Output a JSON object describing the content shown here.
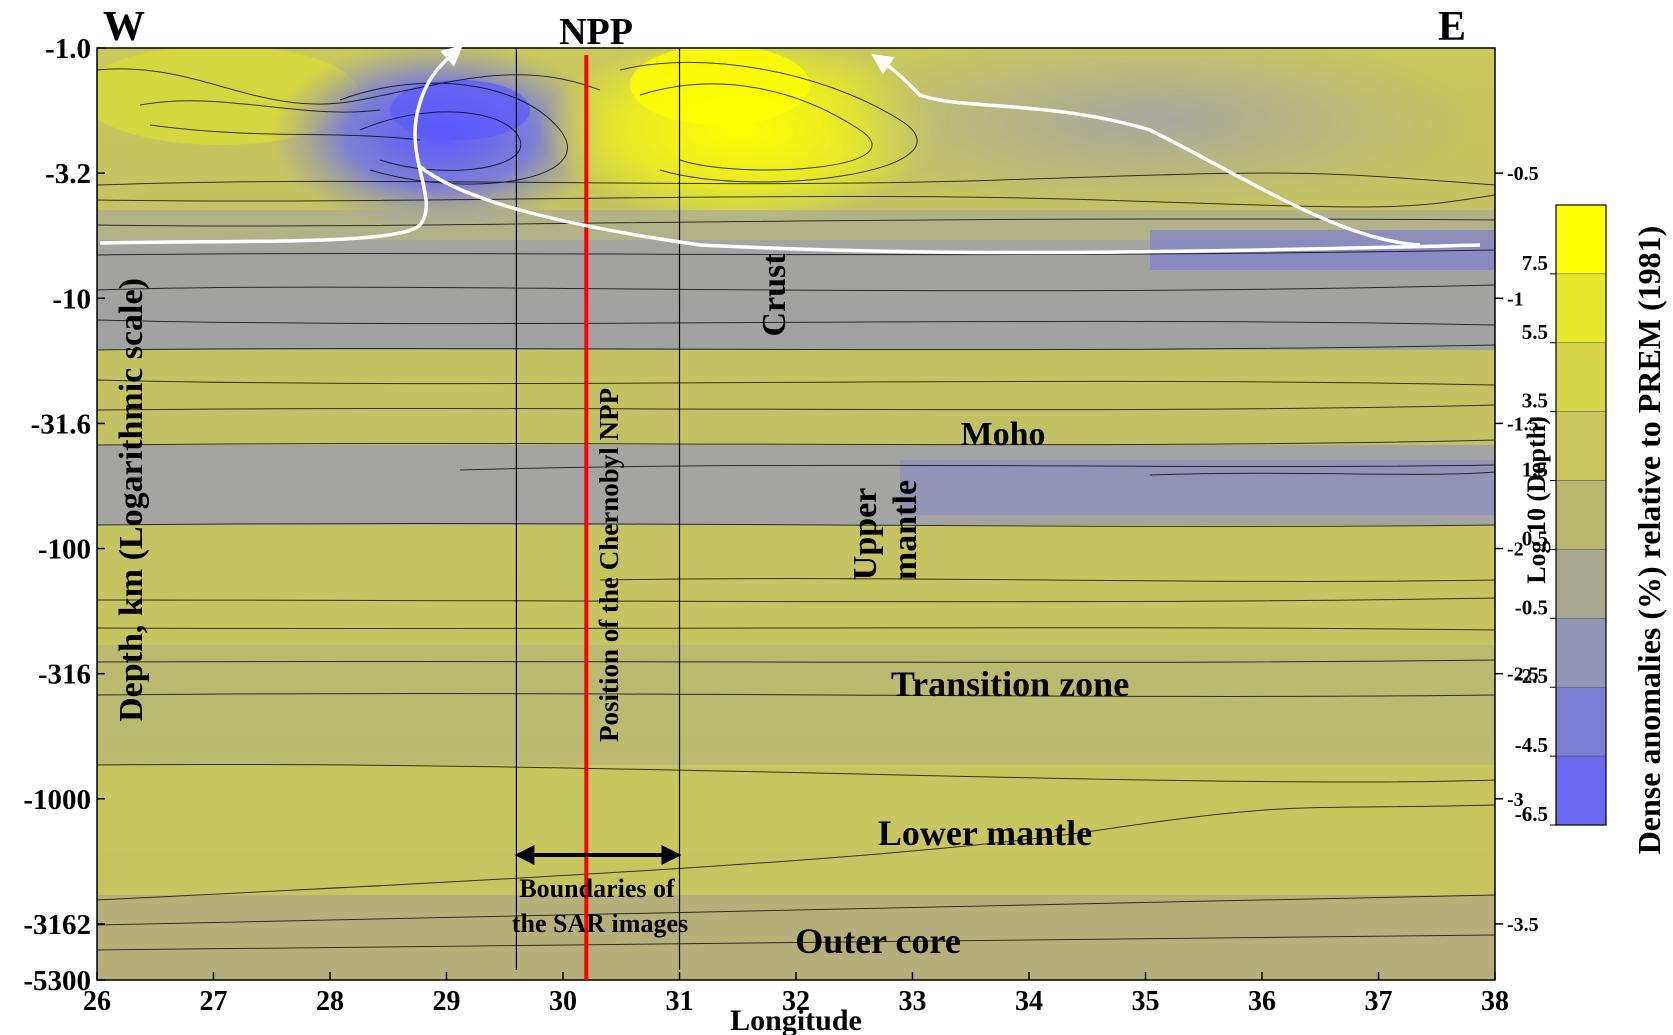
{
  "chart_data": {
    "type": "heatmap",
    "title": "",
    "xlabel": "Longitude",
    "ylabel": "Depth, km (Logarithmic scale)",
    "y2label": "Log 10 (Depth)",
    "colorbar_label": "Dense anomalies (%) relative to PREM (1981)",
    "direction_west": "W",
    "direction_east": "E",
    "top_marker": "NPP",
    "xlim": [
      26,
      38
    ],
    "x_ticks": [
      "26",
      "27",
      "28",
      "29",
      "30",
      "31",
      "32",
      "33",
      "34",
      "35",
      "36",
      "37",
      "38"
    ],
    "y_ticks": [
      {
        "label": "-1.0",
        "log10": 0
      },
      {
        "label": "-3.2",
        "log10": -0.5
      },
      {
        "label": "-10",
        "log10": -1
      },
      {
        "label": "-31.6",
        "log10": -1.5
      },
      {
        "label": "-100",
        "log10": -2
      },
      {
        "label": "-316",
        "log10": -2.5
      },
      {
        "label": "-1000",
        "log10": -3
      },
      {
        "label": "-3162",
        "log10": -3.5
      },
      {
        "label": "-5300",
        "log10": -3.724
      }
    ],
    "y2_ticks": [
      {
        "label": "-0.5",
        "log10": -0.5
      },
      {
        "label": "-1",
        "log10": -1
      },
      {
        "label": "-1.5",
        "log10": -1.5
      },
      {
        "label": "-2",
        "log10": -2
      },
      {
        "label": "-2.5",
        "log10": -2.5
      },
      {
        "label": "-3",
        "log10": -3
      },
      {
        "label": "-3.5",
        "log10": -3.5
      }
    ],
    "colorbar": {
      "levels": [
        "7.5",
        "5.5",
        "3.5",
        "1.5",
        "0.5",
        "-0.5",
        "-2.5",
        "-4.5",
        "-6.5"
      ],
      "colors": [
        "#ffff00",
        "#e8e82a",
        "#d6d64a",
        "#c8c85e",
        "#b8b870",
        "#a8a890",
        "#9595b8",
        "#7e7ed4",
        "#6a6af0"
      ]
    },
    "npp_longitude": 30.2,
    "sar_boundaries_longitude": [
      29.6,
      31.0
    ],
    "layers": [
      {
        "label": "Crust",
        "rotated": true
      },
      {
        "label": "Moho",
        "rotated": false
      },
      {
        "label": "Upper\nmantle",
        "rotated": true
      },
      {
        "label": "Transition zone",
        "rotated": false
      },
      {
        "label": "Lower mantle",
        "rotated": false
      },
      {
        "label": "Outer core",
        "rotated": false
      }
    ],
    "npp_label": "Position of the Chernobyl NPP",
    "sar_label_line1": "Boundaries of",
    "sar_label_line2": "the SAR images",
    "colors": {
      "npp_line": "#ff0000",
      "flow_arrows": "#ffffff",
      "contour": "#000000"
    }
  }
}
